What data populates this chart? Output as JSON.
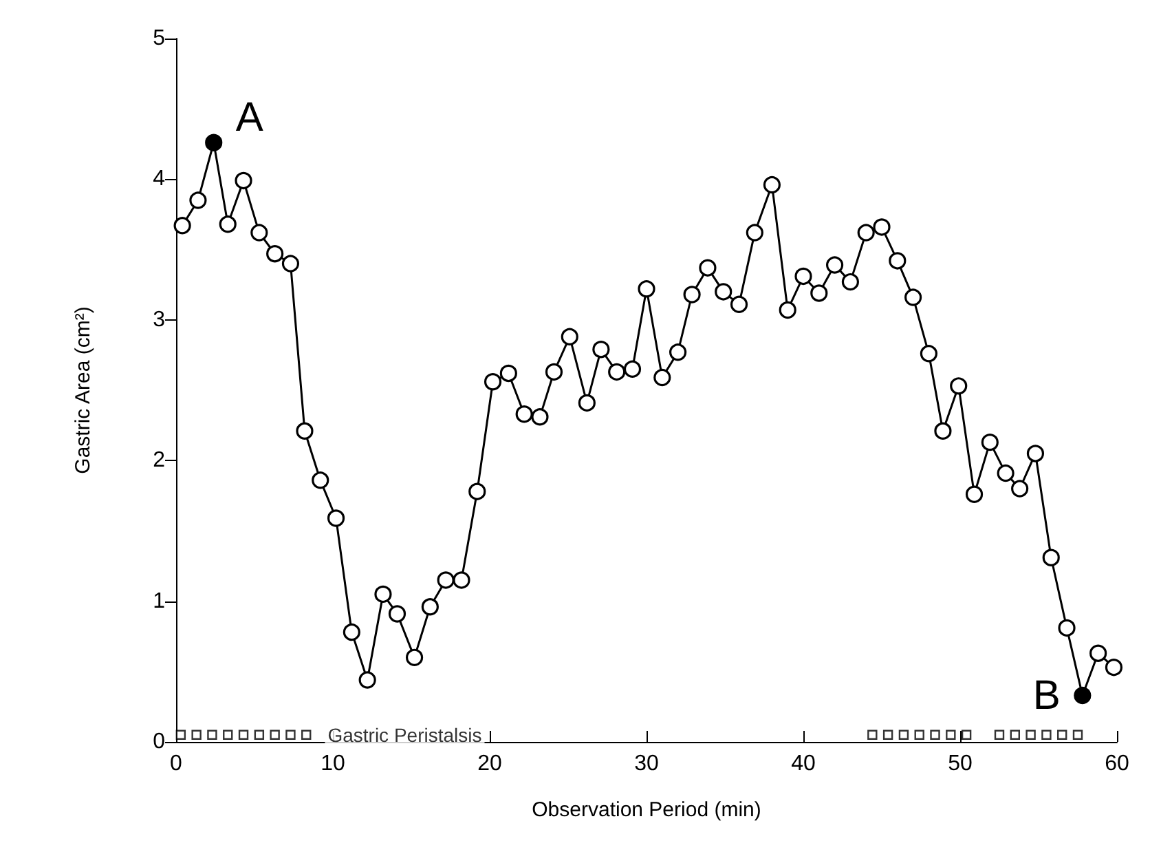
{
  "chart_data": {
    "type": "line",
    "xlabel": "Observation Period (min)",
    "ylabel": "Gastric Area (cm²)",
    "xlim": [
      0,
      60
    ],
    "xticks": [
      0,
      10,
      20,
      30,
      40,
      50,
      60
    ],
    "ylim": [
      0,
      5
    ],
    "yticks": [
      0,
      1,
      2,
      3,
      4,
      5
    ],
    "grid": false,
    "marker": "circle",
    "line_style": "solid",
    "x": [
      0.4,
      1.4,
      2.4,
      3.3,
      4.3,
      5.3,
      6.3,
      7.3,
      8.2,
      9.2,
      10.2,
      11.2,
      12.2,
      13.2,
      14.1,
      15.2,
      16.2,
      17.2,
      18.2,
      19.2,
      20.2,
      21.2,
      22.2,
      23.2,
      24.1,
      25.1,
      26.2,
      27.1,
      28.1,
      29.1,
      30.0,
      31.0,
      32.0,
      32.9,
      33.9,
      34.9,
      35.9,
      36.9,
      38.0,
      39.0,
      40.0,
      41.0,
      42.0,
      43.0,
      44.0,
      45.0,
      46.0,
      47.0,
      48.0,
      48.9,
      49.9,
      50.9,
      51.9,
      52.9,
      53.8,
      54.8,
      55.8,
      56.8,
      57.8,
      58.8,
      59.8
    ],
    "series": [
      {
        "color": "#000000",
        "values": [
          3.67,
          3.85,
          4.26,
          3.68,
          3.99,
          3.62,
          3.47,
          3.4,
          2.21,
          1.86,
          1.59,
          0.78,
          0.44,
          1.05,
          0.91,
          0.6,
          0.96,
          1.15,
          1.15,
          1.78,
          2.56,
          2.62,
          2.33,
          2.31,
          2.63,
          2.88,
          2.41,
          2.79,
          2.63,
          2.65,
          3.22,
          2.59,
          2.77,
          3.18,
          3.37,
          3.2,
          3.11,
          3.62,
          3.96,
          3.07,
          3.31,
          3.19,
          3.39,
          3.27,
          3.62,
          3.66,
          3.42,
          3.16,
          2.76,
          2.21,
          2.53,
          1.76,
          2.13,
          1.91,
          1.8,
          2.05,
          1.31,
          0.81,
          0.33,
          0.63,
          0.53
        ],
        "colors": [
          "#ffffff",
          "#ffffff",
          "#000000",
          "#ffffff",
          "#ffffff",
          "#ffffff",
          "#ffffff",
          "#ffffff",
          "#ffffff",
          "#ffffff",
          "#ffffff",
          "#ffffff",
          "#ffffff",
          "#ffffff",
          "#ffffff",
          "#ffffff",
          "#ffffff",
          "#ffffff",
          "#ffffff",
          "#ffffff",
          "#ffffff",
          "#ffffff",
          "#ffffff",
          "#ffffff",
          "#ffffff",
          "#ffffff",
          "#ffffff",
          "#ffffff",
          "#ffffff",
          "#ffffff",
          "#ffffff",
          "#ffffff",
          "#ffffff",
          "#ffffff",
          "#ffffff",
          "#ffffff",
          "#ffffff",
          "#ffffff",
          "#ffffff",
          "#ffffff",
          "#ffffff",
          "#ffffff",
          "#ffffff",
          "#ffffff",
          "#ffffff",
          "#ffffff",
          "#ffffff",
          "#ffffff",
          "#ffffff",
          "#ffffff",
          "#ffffff",
          "#ffffff",
          "#ffffff",
          "#ffffff",
          "#ffffff",
          "#ffffff",
          "#ffffff",
          "#ffffff",
          "#000000",
          "#ffffff",
          "#ffffff"
        ]
      },
      {
        "name": "Gastric Peristalsis",
        "type": "scatter",
        "marker": "square",
        "color": "#000000",
        "x": [
          0.3,
          1.3,
          2.3,
          3.3,
          4.3,
          5.3,
          6.3,
          7.3,
          8.3,
          44.4,
          45.4,
          46.4,
          47.4,
          48.4,
          49.4,
          50.4,
          52.5,
          53.5,
          54.5,
          55.5,
          56.5,
          57.5
        ],
        "values": [
          0.05,
          0.05,
          0.05,
          0.05,
          0.05,
          0.05,
          0.05,
          0.05,
          0.05,
          0.05,
          0.05,
          0.05,
          0.05,
          0.05,
          0.05,
          0.05,
          0.05,
          0.05,
          0.05,
          0.05,
          0.05,
          0.05
        ]
      }
    ],
    "annotations": [
      {
        "text": "A",
        "x": 2.4,
        "y": 4.26
      },
      {
        "text": "B",
        "x": 57.8,
        "y": 0.33
      }
    ]
  }
}
